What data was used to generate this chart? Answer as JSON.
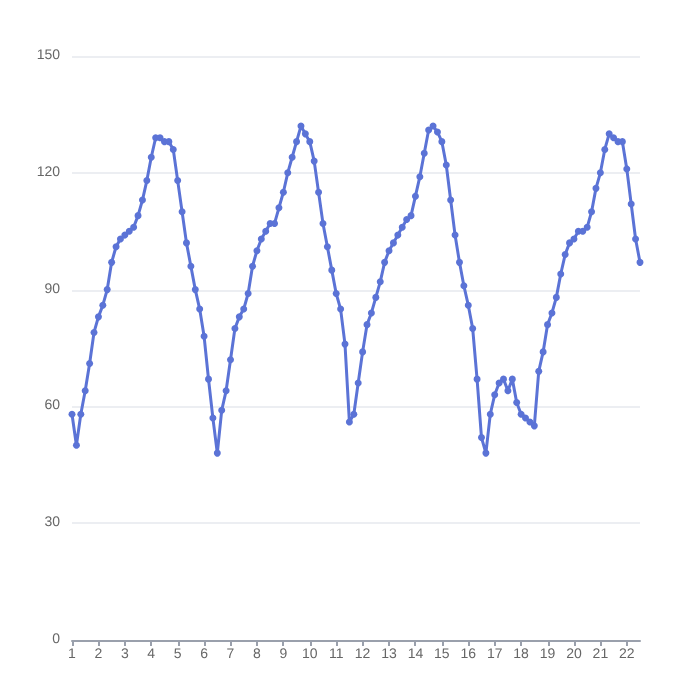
{
  "chart_data": {
    "type": "line",
    "x": [
      1,
      1.167,
      1.333,
      1.5,
      1.667,
      1.833,
      2,
      2.167,
      2.333,
      2.5,
      2.667,
      2.833,
      3,
      3.167,
      3.333,
      3.5,
      3.667,
      3.833,
      4,
      4.167,
      4.333,
      4.5,
      4.667,
      4.833,
      5,
      5.167,
      5.333,
      5.5,
      5.667,
      5.833,
      6,
      6.167,
      6.333,
      6.5,
      6.667,
      6.833,
      7,
      7.167,
      7.333,
      7.5,
      7.667,
      7.833,
      8,
      8.167,
      8.333,
      8.5,
      8.667,
      8.833,
      9,
      9.167,
      9.333,
      9.5,
      9.667,
      9.833,
      10,
      10.167,
      10.333,
      10.5,
      10.667,
      10.833,
      11,
      11.167,
      11.333,
      11.5,
      11.667,
      11.833,
      12,
      12.167,
      12.333,
      12.5,
      12.667,
      12.833,
      13,
      13.167,
      13.333,
      13.5,
      13.667,
      13.833,
      14,
      14.167,
      14.333,
      14.5,
      14.667,
      14.833,
      15,
      15.167,
      15.333,
      15.5,
      15.667,
      15.833,
      16,
      16.167,
      16.333,
      16.5,
      16.667,
      16.833,
      17,
      17.167,
      17.333,
      17.5,
      17.667,
      17.833,
      18,
      18.167,
      18.333,
      18.5,
      18.667,
      18.833,
      19,
      19.167,
      19.333,
      19.5,
      19.667,
      19.833,
      20,
      20.167,
      20.333,
      20.5,
      20.667,
      20.833,
      21,
      21.167,
      21.333,
      21.5,
      21.667,
      21.833,
      22,
      22.167,
      22.333,
      22.5
    ],
    "series": [
      {
        "color": "#5b73d6",
        "values": [
          58,
          50,
          58,
          64,
          71,
          79,
          83,
          86,
          90,
          97,
          101,
          103,
          104,
          105,
          106,
          109,
          113,
          118,
          124,
          129,
          129,
          128,
          128,
          126,
          118,
          110,
          102,
          96,
          90,
          85,
          78,
          67,
          57,
          48,
          59,
          64,
          72,
          80,
          83,
          85,
          89,
          96,
          100,
          103,
          105,
          107,
          107,
          111,
          115,
          120,
          124,
          128,
          132,
          130,
          128,
          123,
          115,
          107,
          101,
          95,
          89,
          85,
          76,
          56,
          58,
          66,
          74,
          81,
          84,
          88,
          92,
          97,
          100,
          102,
          104,
          106,
          108,
          109,
          114,
          119,
          125,
          131,
          132,
          130.5,
          128,
          122,
          113,
          104,
          97,
          91,
          86,
          80,
          67,
          52,
          48,
          58,
          63,
          66,
          67,
          64,
          67,
          61,
          58,
          57,
          56,
          55,
          69,
          74,
          81,
          84,
          88,
          94,
          99,
          102,
          103,
          105,
          105,
          106,
          110,
          116,
          120,
          126,
          130,
          129,
          128,
          128,
          121,
          112,
          103,
          97
        ]
      }
    ],
    "xlim": [
      1,
      22.5
    ],
    "xticks": [
      1,
      2,
      3,
      4,
      5,
      6,
      7,
      8,
      9,
      10,
      11,
      12,
      13,
      14,
      15,
      16,
      17,
      18,
      19,
      20,
      21,
      22
    ],
    "ylim": [
      0,
      150
    ],
    "yticks": [
      0,
      30,
      60,
      90,
      120,
      150
    ],
    "grid": "y",
    "marker": "circle",
    "line_style": "solid"
  }
}
